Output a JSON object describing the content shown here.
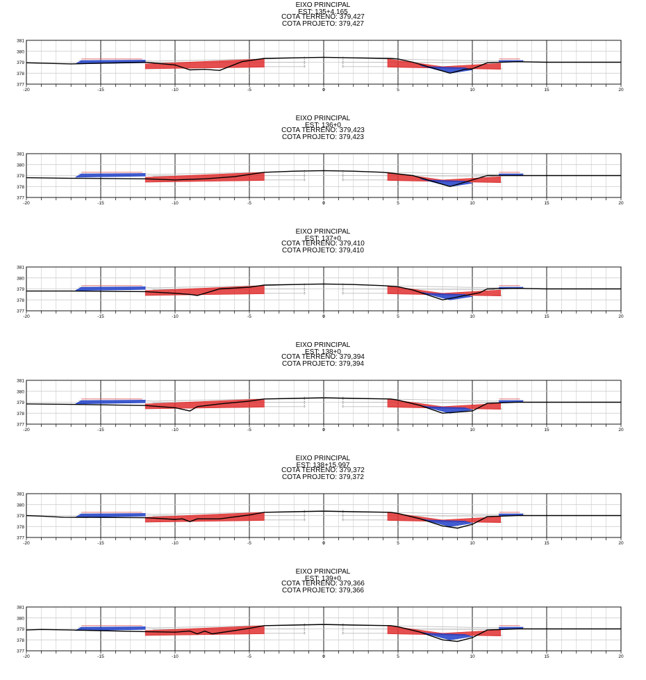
{
  "sections": [
    {
      "axis_label": "EIXO PRINCIPAL",
      "station": "EST: 135+4.165",
      "ground_elevation": "COTA TERRENO: 379,427",
      "design_elevation": "COTA PROJETO: 379,427"
    },
    {
      "axis_label": "EIXO PRINCIPAL",
      "station": "EST: 136+0",
      "ground_elevation": "COTA TERRENO: 379,423",
      "design_elevation": "COTA PROJETO: 379,423"
    },
    {
      "axis_label": "EIXO PRINCIPAL",
      "station": "EST: 137+0",
      "ground_elevation": "COTA TERRENO: 379,410",
      "design_elevation": "COTA PROJETO: 379,410"
    },
    {
      "axis_label": "EIXO PRINCIPAL",
      "station": "EST: 138+0",
      "ground_elevation": "COTA TERRENO: 379,394",
      "design_elevation": "COTA PROJETO: 379,394"
    },
    {
      "axis_label": "EIXO PRINCIPAL",
      "station": "EST: 138+15.997",
      "ground_elevation": "COTA TERRENO: 379,372",
      "design_elevation": "COTA PROJETO: 379,372"
    },
    {
      "axis_label": "EIXO PRINCIPAL",
      "station": "EST: 139+0",
      "ground_elevation": "COTA TERRENO: 379,366",
      "design_elevation": "COTA PROJETO: 379,366"
    }
  ],
  "axes": {
    "x_ticks": [
      "-20",
      "-15",
      "-10",
      "-5",
      "0",
      "5",
      "10",
      "15",
      "20"
    ],
    "y_ticks": [
      "381",
      "380",
      "379",
      "378",
      "377"
    ],
    "xlim": [
      -20,
      20
    ],
    "ylim": [
      377,
      381
    ]
  },
  "colors": {
    "cut": "#e03030",
    "fill": "#2040c8",
    "ground_line": "#000000",
    "grid": "#c8c8c8",
    "template": "#bdbdbd"
  }
}
